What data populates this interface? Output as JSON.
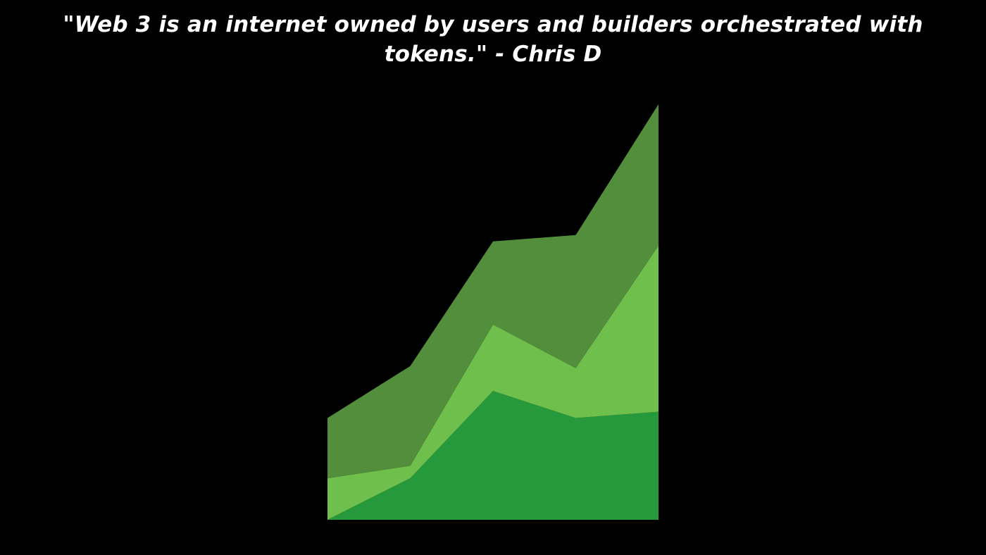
{
  "quote": {
    "text": "\"Web 3 is an internet owned by users and builders orchestrated with tokens.\" - Chris D"
  },
  "chart_data": {
    "type": "area",
    "stacked": true,
    "x": [
      1,
      2,
      3,
      4,
      5
    ],
    "ylim": [
      0,
      100
    ],
    "grid": false,
    "legend": "none",
    "series": [
      {
        "color": "#27993d",
        "values": [
          0,
          10,
          31,
          24.5,
          26
        ]
      },
      {
        "color": "#6ebf4b",
        "values": [
          10,
          3,
          16,
          12,
          40
        ]
      },
      {
        "color": "#538e3c",
        "values": [
          14.5,
          24,
          20,
          32,
          34
        ]
      }
    ]
  }
}
